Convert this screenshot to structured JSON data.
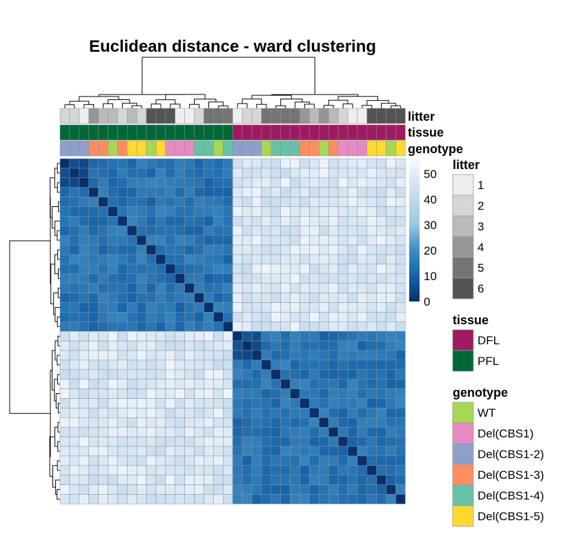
{
  "chart_data": {
    "type": "heatmap",
    "title": "Euclidean distance - ward clustering",
    "n_samples": 36,
    "row_groups": [
      18,
      18
    ],
    "colorbar": {
      "ticks": [
        0,
        10,
        20,
        30,
        40,
        50
      ],
      "range": [
        0,
        56
      ],
      "colors": [
        "#08306b",
        "#1763aa",
        "#3d8dc3",
        "#9ecae1",
        "#c6dbef",
        "#f7fbff"
      ]
    },
    "values": {
      "diagonal": 0,
      "within_group": 14,
      "between_group": 48
    },
    "annotation_rows": [
      "litter",
      "tissue",
      "genotype"
    ],
    "annotations": {
      "litter": [
        2,
        2,
        1,
        4,
        3,
        3,
        2,
        3,
        2,
        6,
        6,
        6,
        1,
        1,
        2,
        5,
        5,
        5,
        1,
        2,
        2,
        5,
        5,
        5,
        5,
        4,
        3,
        4,
        3,
        2,
        1,
        1,
        6,
        6,
        6,
        6
      ],
      "tissue": [
        "PFL",
        "PFL",
        "PFL",
        "PFL",
        "PFL",
        "PFL",
        "PFL",
        "PFL",
        "PFL",
        "PFL",
        "PFL",
        "PFL",
        "PFL",
        "PFL",
        "PFL",
        "PFL",
        "PFL",
        "PFL",
        "DFL",
        "DFL",
        "DFL",
        "DFL",
        "DFL",
        "DFL",
        "DFL",
        "DFL",
        "DFL",
        "DFL",
        "DFL",
        "DFL",
        "DFL",
        "DFL",
        "DFL",
        "DFL",
        "DFL",
        "DFL"
      ],
      "genotype": [
        "Del(CBS1-2)",
        "Del(CBS1-2)",
        "Del(CBS1-2)",
        "Del(CBS1-3)",
        "Del(CBS1-3)",
        "WT",
        "Del(CBS1-3)",
        "Del(CBS1-5)",
        "Del(CBS1-5)",
        "WT",
        "Del(CBS1-5)",
        "Del(CBS1)",
        "Del(CBS1)",
        "Del(CBS1)",
        "Del(CBS1-4)",
        "Del(CBS1-4)",
        "WT",
        "Del(CBS1-4)",
        "Del(CBS1-2)",
        "Del(CBS1-2)",
        "Del(CBS1-2)",
        "WT",
        "Del(CBS1-4)",
        "Del(CBS1-4)",
        "Del(CBS1-4)",
        "Del(CBS1-3)",
        "Del(CBS1-3)",
        "WT",
        "Del(CBS1-3)",
        "Del(CBS1)",
        "Del(CBS1)",
        "Del(CBS1)",
        "Del(CBS1-5)",
        "Del(CBS1-5)",
        "WT",
        "Del(CBS1-5)"
      ]
    },
    "legends": {
      "litter": {
        "title": "litter",
        "entries": [
          {
            "label": "1",
            "color": "#eeeeee"
          },
          {
            "label": "2",
            "color": "#d6d6d6"
          },
          {
            "label": "3",
            "color": "#bababa"
          },
          {
            "label": "4",
            "color": "#969696"
          },
          {
            "label": "5",
            "color": "#747474"
          },
          {
            "label": "6",
            "color": "#545454"
          }
        ]
      },
      "tissue": {
        "title": "tissue",
        "entries": [
          {
            "label": "DFL",
            "color": "#9e1b62"
          },
          {
            "label": "PFL",
            "color": "#006837"
          }
        ]
      },
      "genotype": {
        "title": "genotype",
        "entries": [
          {
            "label": "WT",
            "color": "#a6d854"
          },
          {
            "label": "Del(CBS1)",
            "color": "#e78ac3"
          },
          {
            "label": "Del(CBS1-2)",
            "color": "#8da0cb"
          },
          {
            "label": "Del(CBS1-3)",
            "color": "#fc8d62"
          },
          {
            "label": "Del(CBS1-4)",
            "color": "#66c2a5"
          },
          {
            "label": "Del(CBS1-5)",
            "color": "#ffd92f"
          }
        ]
      }
    }
  }
}
